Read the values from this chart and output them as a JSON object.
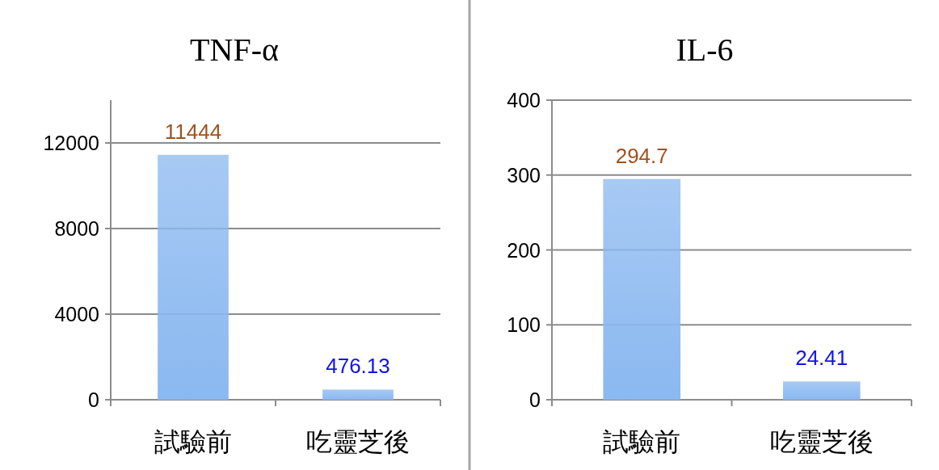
{
  "chart_data": [
    {
      "type": "bar",
      "title": "TNF-α",
      "categories": [
        "試驗前",
        "吃靈芝後"
      ],
      "values": [
        11444,
        476.13
      ],
      "color": "#8ab8f0",
      "ylim": [
        0,
        14000
      ],
      "yticks": [
        0,
        4000,
        8000,
        12000
      ],
      "grid": "y",
      "data_labels": true
    },
    {
      "type": "bar",
      "title": "IL-6",
      "categories": [
        "試驗前",
        "吃靈芝後"
      ],
      "values": [
        294.7,
        24.41
      ],
      "color": "#8ab8f0",
      "ylim": [
        0,
        400
      ],
      "yticks": [
        0,
        100,
        200,
        300,
        400
      ],
      "grid": "y",
      "data_labels": true
    }
  ]
}
